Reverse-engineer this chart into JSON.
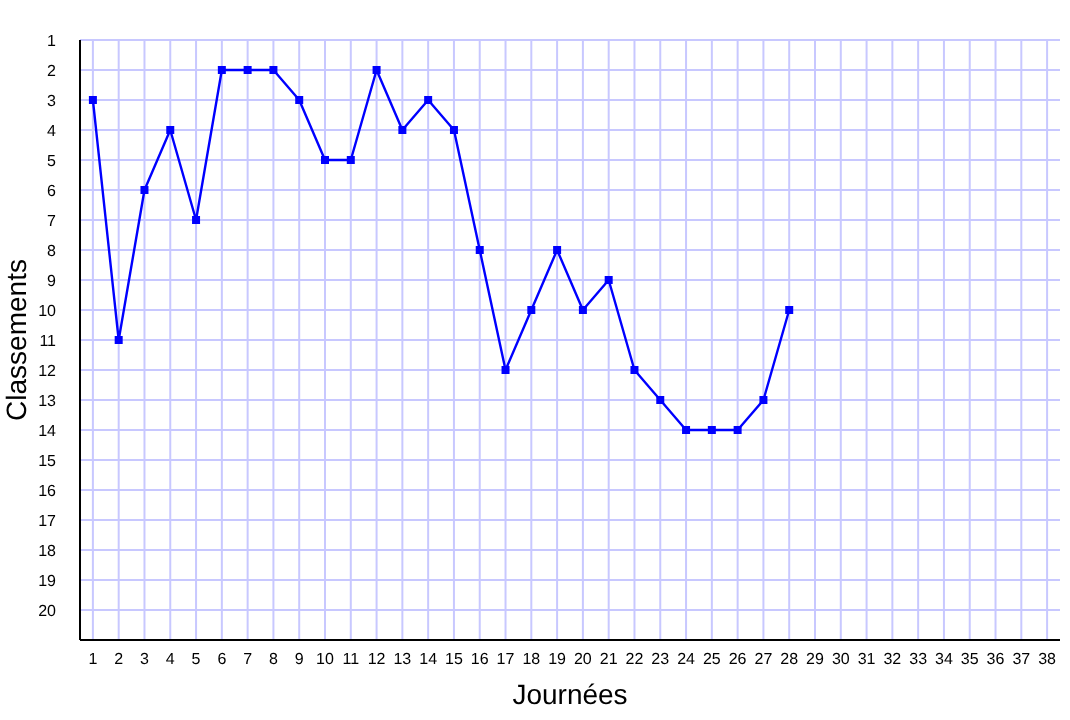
{
  "chart_data": {
    "type": "line",
    "xlabel": "Journées",
    "ylabel": "Classements",
    "x": [
      1,
      2,
      3,
      4,
      5,
      6,
      7,
      8,
      9,
      10,
      11,
      12,
      13,
      14,
      15,
      16,
      17,
      18,
      19,
      20,
      21,
      22,
      23,
      24,
      25,
      26,
      27,
      28
    ],
    "series": [
      {
        "color": "#0000ff",
        "values": [
          3,
          11,
          6,
          4,
          7,
          2,
          2,
          2,
          3,
          5,
          5,
          2,
          4,
          3,
          4,
          8,
          12,
          10,
          8,
          10,
          9,
          12,
          13,
          14,
          14,
          14,
          13,
          10
        ]
      }
    ],
    "xlim": [
      0.5,
      38.5
    ],
    "ylim": [
      21,
      1
    ],
    "xticks": [
      1,
      2,
      3,
      4,
      5,
      6,
      7,
      8,
      9,
      10,
      11,
      12,
      13,
      14,
      15,
      16,
      17,
      18,
      19,
      20,
      21,
      22,
      23,
      24,
      25,
      26,
      27,
      28,
      29,
      30,
      31,
      32,
      33,
      34,
      35,
      36,
      37,
      38
    ],
    "yticks": [
      1,
      2,
      3,
      4,
      5,
      6,
      7,
      8,
      9,
      10,
      11,
      12,
      13,
      14,
      15,
      16,
      17,
      18,
      19,
      20
    ],
    "grid": true,
    "marker": "square",
    "line_style": "solid"
  }
}
